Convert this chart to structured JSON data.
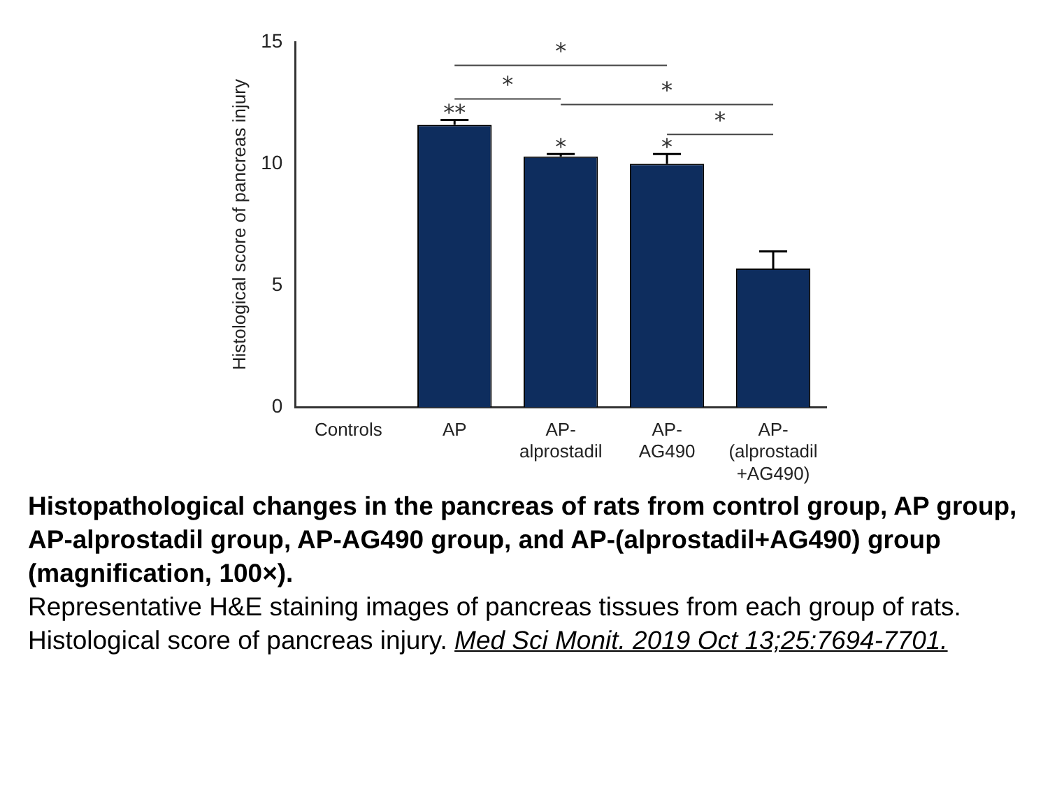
{
  "chart_data": {
    "type": "bar",
    "title": "Histopathological changes in the pancreas of rats from control group, AP group, AP-alprostadil group, AP-AG490 group, and AP-(alprostadil+AG490) group (magnification, 100×).",
    "ylabel": "Histological score of pancreas injury",
    "categories": [
      "Controls",
      "AP",
      "AP-alprostadil",
      "AP-AG490",
      "AP-(alprostadil+AG490)"
    ],
    "values": [
      0,
      11.6,
      10.3,
      10.0,
      5.7
    ],
    "errors": [
      null,
      [
        11.6,
        11.8
      ],
      [
        10.3,
        10.4
      ],
      [
        10.0,
        10.4
      ],
      [
        5.7,
        6.4
      ]
    ],
    "color": "#0e2d5e",
    "ylim": [
      0,
      15
    ],
    "yticks": [
      0,
      5,
      10,
      15
    ],
    "grid": false,
    "legend": false,
    "annotations": [
      {
        "text": "**",
        "x": "AP",
        "y": 11.8
      },
      {
        "text": "*",
        "x": "AP-alprostadil",
        "y": 10.4
      },
      {
        "text": "*",
        "x": "AP-AG490",
        "y": 10.4
      },
      "*",
      "*",
      "*",
      "*",
      "Representative H&E staining images of pancreas tissues from each group of rats. Histological score of pancreas injury.",
      "Med Sci Monit. 2019 Oct 13;25:7694-7701."
    ]
  }
}
